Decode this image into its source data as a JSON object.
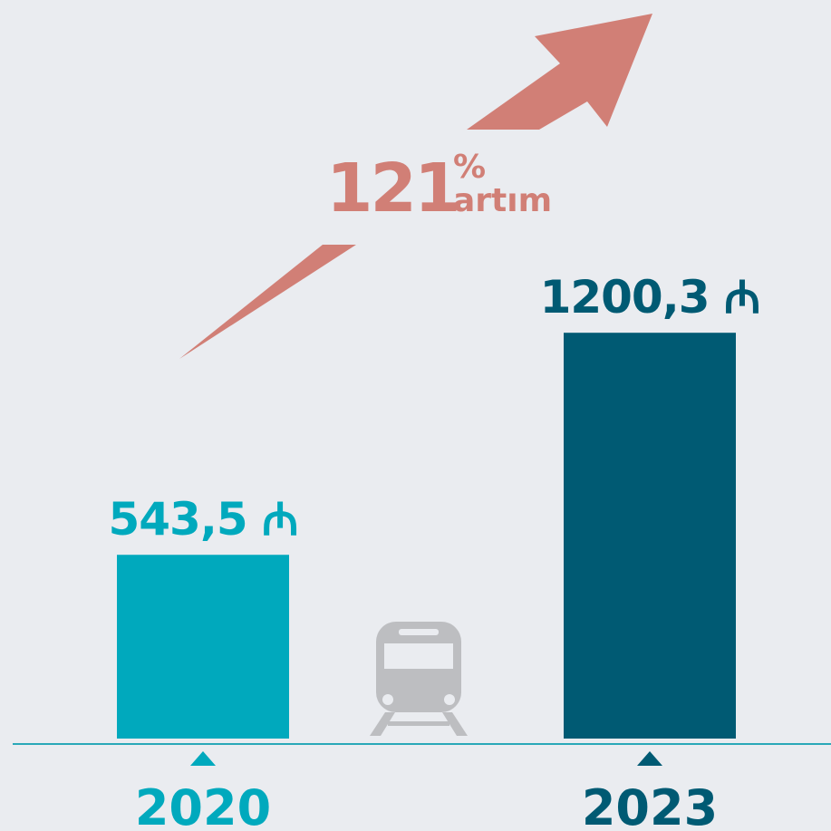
{
  "chart_data": {
    "type": "bar",
    "categories": [
      "2020",
      "2023"
    ],
    "values": [
      543.5,
      1200.3
    ],
    "value_labels": [
      "543,5 ₼",
      "1200,3 ₼"
    ],
    "colors": [
      "#00a9bd",
      "#005a73"
    ],
    "ylim": [
      0,
      1300
    ],
    "annotation": {
      "value": 121,
      "unit": "%",
      "text": "artım"
    }
  }
}
